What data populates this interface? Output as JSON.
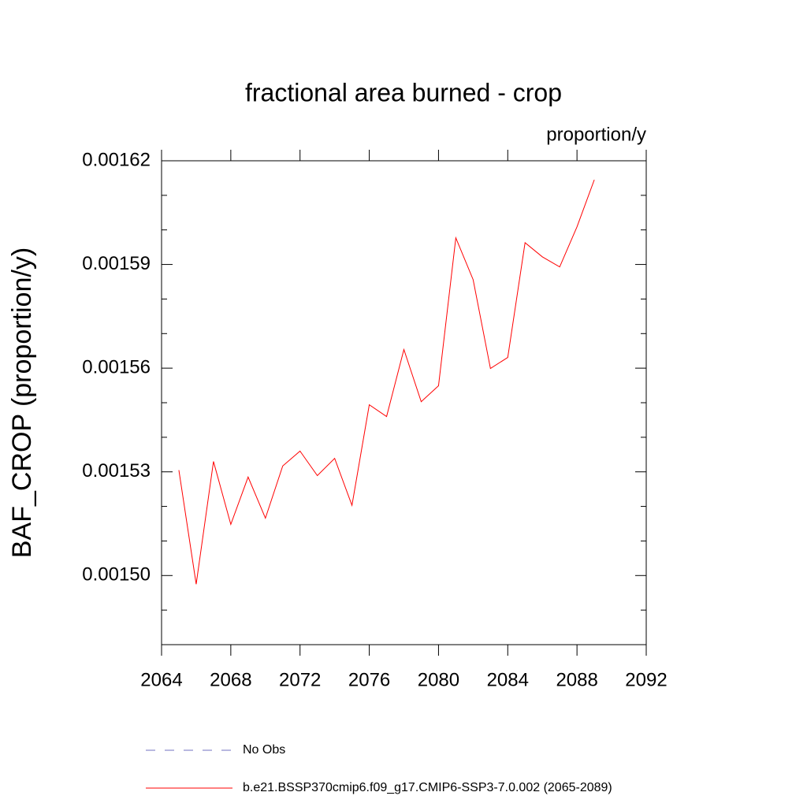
{
  "chart_data": {
    "type": "line",
    "title": "fractional area burned - crop",
    "units": "proportion/y",
    "y_label": "BAF_CROP  (proportion/y)",
    "x": [
      2065,
      2066,
      2067,
      2068,
      2069,
      2070,
      2071,
      2072,
      2073,
      2074,
      2075,
      2076,
      2077,
      2078,
      2079,
      2080,
      2081,
      2082,
      2083,
      2084,
      2085,
      2086,
      2087,
      2088,
      2089
    ],
    "series": [
      {
        "name": "b.e21.BSSP370cmip6.f09_g17.CMIP6-SSP3-7.0.002 (2065-2089)",
        "color": "#ff0000",
        "values": [
          0.0015305,
          0.0014975,
          0.001533,
          0.0015148,
          0.0015285,
          0.0015166,
          0.0015317,
          0.001536,
          0.0015289,
          0.0015339,
          0.0015203,
          0.0015494,
          0.001546,
          0.0015654,
          0.0015503,
          0.0015549,
          0.0015977,
          0.0015856,
          0.0015599,
          0.0015631,
          0.0015963,
          0.0015922,
          0.0015893,
          0.0016009,
          0.0016145
        ]
      }
    ],
    "extra_legend": [
      {
        "name": "No Obs",
        "color": "#7070c0",
        "dash": "12 12"
      }
    ],
    "xlim": [
      2064,
      2092
    ],
    "xticks": [
      2064,
      2068,
      2072,
      2076,
      2080,
      2084,
      2088,
      2092
    ],
    "ylim": [
      0.00148,
      0.00162
    ],
    "yticks": [
      {
        "value": 0.0015,
        "label": "0.00150"
      },
      0.00153,
      0.00156,
      0.00159,
      0.00162
    ]
  }
}
